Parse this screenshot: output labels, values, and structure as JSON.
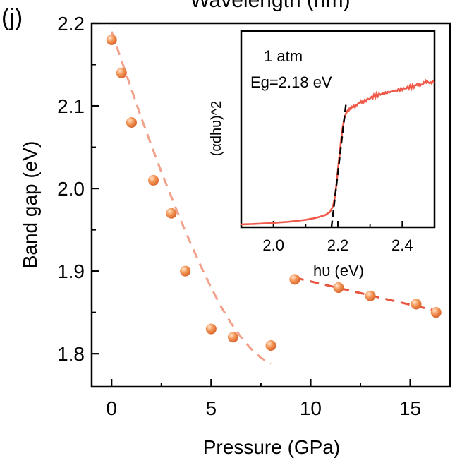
{
  "panel_label": "(j)",
  "top_axis_label": "Wavelength (nm)",
  "chart_data": [
    {
      "type": "scatter",
      "title": "",
      "xlabel": "Pressure (GPa)",
      "ylabel": "Band gap (eV)",
      "xlim": [
        -1,
        17
      ],
      "ylim": [
        1.76,
        2.2
      ],
      "xticks": [
        0,
        5,
        10,
        15
      ],
      "xtick_labels": [
        "0",
        "5",
        "10",
        "15"
      ],
      "yticks": [
        1.8,
        1.9,
        2.0,
        2.1,
        2.2
      ],
      "ytick_labels": [
        "1.8",
        "1.9",
        "2.0",
        "2.1",
        "2.2"
      ],
      "grid": false,
      "series": [
        {
          "x": [
            0.0,
            0.5,
            1.0,
            2.1,
            3.0,
            3.7,
            5.0,
            6.1,
            8.0
          ],
          "y": [
            2.18,
            2.14,
            2.08,
            2.01,
            1.97,
            1.9,
            1.83,
            1.82,
            1.81
          ],
          "color": "#f08a4b",
          "fit": {
            "style": "dashed",
            "color": "#f2a08a",
            "x": [
              0.0,
              0.5,
              1.0,
              1.5,
              2.0,
              2.5,
              3.0,
              3.5,
              4.0,
              4.5,
              5.0,
              5.5,
              6.0,
              6.5,
              7.0,
              7.5,
              8.0
            ],
            "y": [
              2.19,
              2.155,
              2.12,
              2.085,
              2.052,
              2.02,
              1.99,
              1.96,
              1.932,
              1.905,
              1.88,
              1.857,
              1.837,
              1.82,
              1.806,
              1.795,
              1.788
            ]
          }
        },
        {
          "x": [
            9.2,
            11.4,
            13.0,
            15.3,
            16.3
          ],
          "y": [
            1.89,
            1.88,
            1.87,
            1.86,
            1.85
          ],
          "color": "#f08a4b",
          "fit": {
            "style": "dashed",
            "color": "#e8553f",
            "x": [
              9.2,
              16.3
            ],
            "y": [
              1.892,
              1.852
            ]
          }
        }
      ]
    },
    {
      "type": "line",
      "title": "",
      "annotation_lines": [
        "1 atm",
        "Eg=2.18 eV"
      ],
      "xlabel": "hυ (eV)",
      "ylabel": "(αdhυ)^2",
      "xlim": [
        1.9,
        2.5
      ],
      "ylim": [
        0,
        1
      ],
      "xticks": [
        2.0,
        2.2,
        2.4
      ],
      "xtick_labels": [
        "2.0",
        "2.2",
        "2.4"
      ],
      "series": [
        {
          "color": "#f05a4a",
          "x": [
            1.9,
            1.95,
            2.0,
            2.05,
            2.1,
            2.13,
            2.16,
            2.175,
            2.185,
            2.19,
            2.195,
            2.2,
            2.205,
            2.21,
            2.215,
            2.22,
            2.225,
            2.23,
            2.25,
            2.28,
            2.32,
            2.36,
            2.4,
            2.44,
            2.47,
            2.5
          ],
          "y": [
            0.0,
            0.004,
            0.01,
            0.018,
            0.03,
            0.042,
            0.06,
            0.08,
            0.12,
            0.17,
            0.25,
            0.35,
            0.45,
            0.55,
            0.63,
            0.69,
            0.72,
            0.74,
            0.77,
            0.8,
            0.84,
            0.86,
            0.88,
            0.9,
            0.92,
            0.93
          ]
        }
      ],
      "tangent": {
        "style": "dashed",
        "color": "#000000",
        "x": [
          2.18,
          2.225
        ],
        "y": [
          -0.02,
          0.78
        ]
      }
    }
  ]
}
